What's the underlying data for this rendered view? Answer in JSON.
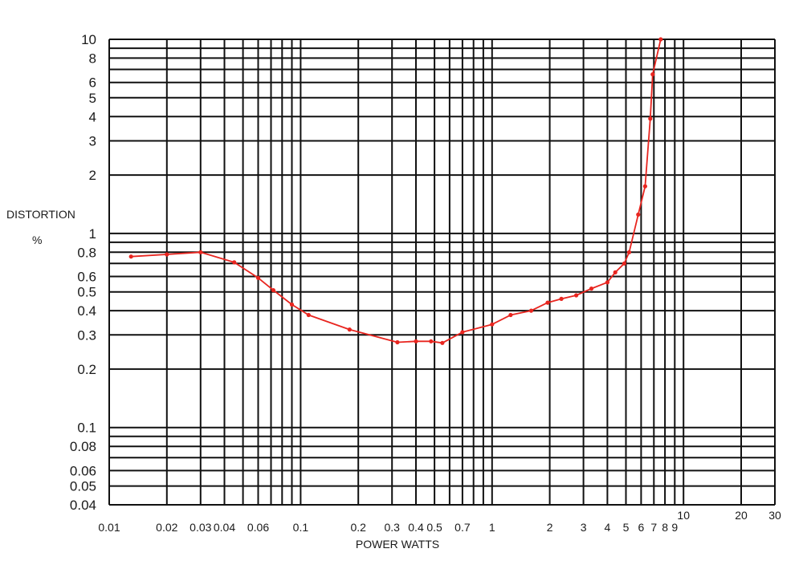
{
  "chart_data": {
    "type": "line",
    "title": "",
    "xlabel": "POWER WATTS",
    "ylabel": "DISTORTION",
    "ylabel_unit": "%",
    "x_scale": "log",
    "y_scale": "log",
    "xlim": [
      0.01,
      30
    ],
    "ylim": [
      0.04,
      10
    ],
    "grid": true,
    "line_color": "#e8251f",
    "grid_color": "#111111",
    "x_gridlines": [
      0.01,
      0.02,
      0.03,
      0.04,
      0.05,
      0.06,
      0.07,
      0.08,
      0.09,
      0.1,
      0.2,
      0.3,
      0.4,
      0.5,
      0.6,
      0.7,
      0.8,
      0.9,
      1,
      2,
      3,
      4,
      5,
      6,
      7,
      8,
      9,
      10,
      20,
      30
    ],
    "y_gridlines": [
      0.04,
      0.05,
      0.06,
      0.07,
      0.08,
      0.09,
      0.1,
      0.2,
      0.3,
      0.4,
      0.5,
      0.6,
      0.7,
      0.8,
      0.9,
      1,
      2,
      3,
      4,
      5,
      6,
      7,
      8,
      9,
      10
    ],
    "x_tick_labels": [
      {
        "value": 0.01,
        "label": "0.01"
      },
      {
        "value": 0.02,
        "label": "0.02"
      },
      {
        "value": 0.03,
        "label": "0.03"
      },
      {
        "value": 0.04,
        "label": "0.04"
      },
      {
        "value": 0.06,
        "label": "0.06"
      },
      {
        "value": 0.1,
        "label": "0.1"
      },
      {
        "value": 0.2,
        "label": "0.2"
      },
      {
        "value": 0.3,
        "label": "0.3"
      },
      {
        "value": 0.4,
        "label": "0.4"
      },
      {
        "value": 0.5,
        "label": "0.5"
      },
      {
        "value": 0.7,
        "label": "0.7"
      },
      {
        "value": 1,
        "label": "1"
      },
      {
        "value": 2,
        "label": "2"
      },
      {
        "value": 3,
        "label": "3"
      },
      {
        "value": 4,
        "label": "4"
      },
      {
        "value": 5,
        "label": "5"
      },
      {
        "value": 6,
        "label": "6"
      },
      {
        "value": 7,
        "label": "7"
      },
      {
        "value": 8,
        "label": "8"
      },
      {
        "value": 9,
        "label": "9"
      },
      {
        "value": 10,
        "label": "10"
      },
      {
        "value": 20,
        "label": "20"
      },
      {
        "value": 30,
        "label": "30"
      }
    ],
    "y_tick_labels": [
      {
        "value": 10,
        "label": "10"
      },
      {
        "value": 8,
        "label": "8"
      },
      {
        "value": 6,
        "label": "6"
      },
      {
        "value": 5,
        "label": "5"
      },
      {
        "value": 4,
        "label": "4"
      },
      {
        "value": 3,
        "label": "3"
      },
      {
        "value": 2,
        "label": "2"
      },
      {
        "value": 1,
        "label": "1"
      },
      {
        "value": 0.8,
        "label": "0.8"
      },
      {
        "value": 0.6,
        "label": "0.6"
      },
      {
        "value": 0.5,
        "label": "0.5"
      },
      {
        "value": 0.4,
        "label": "0.4"
      },
      {
        "value": 0.3,
        "label": "0.3"
      },
      {
        "value": 0.2,
        "label": "0.2"
      },
      {
        "value": 0.1,
        "label": "0.1"
      },
      {
        "value": 0.08,
        "label": "0.08"
      },
      {
        "value": 0.06,
        "label": "0.06"
      },
      {
        "value": 0.05,
        "label": "0.05"
      },
      {
        "value": 0.04,
        "label": "0.04"
      }
    ],
    "series": [
      {
        "points": [
          [
            0.013,
            0.76
          ],
          [
            0.02,
            0.78
          ],
          [
            0.03,
            0.8
          ],
          [
            0.045,
            0.71
          ],
          [
            0.06,
            0.59
          ],
          [
            0.072,
            0.51
          ],
          [
            0.09,
            0.43
          ],
          [
            0.11,
            0.38
          ],
          [
            0.18,
            0.32
          ],
          [
            0.32,
            0.275
          ],
          [
            0.4,
            0.278
          ],
          [
            0.48,
            0.278
          ],
          [
            0.55,
            0.273
          ],
          [
            0.7,
            0.31
          ],
          [
            1.0,
            0.34
          ],
          [
            1.25,
            0.38
          ],
          [
            1.6,
            0.4
          ],
          [
            1.95,
            0.44
          ],
          [
            2.3,
            0.46
          ],
          [
            2.75,
            0.48
          ],
          [
            3.3,
            0.52
          ],
          [
            4.0,
            0.56
          ],
          [
            4.4,
            0.63
          ],
          [
            4.9,
            0.7
          ],
          [
            5.2,
            0.8
          ],
          [
            5.8,
            1.25
          ],
          [
            6.3,
            1.75
          ],
          [
            6.7,
            3.9
          ],
          [
            6.9,
            6.6
          ],
          [
            7.6,
            10.0
          ]
        ]
      }
    ]
  }
}
